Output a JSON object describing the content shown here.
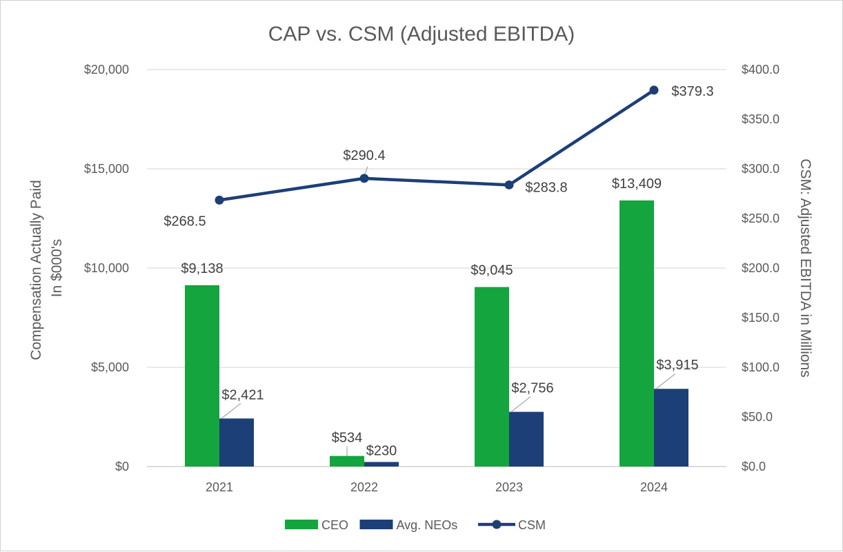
{
  "chart_data": {
    "type": "bar",
    "title": "CAP vs. CSM (Adjusted EBITDA)",
    "categories": [
      "2021",
      "2022",
      "2023",
      "2024"
    ],
    "series": [
      {
        "name": "CEO",
        "kind": "bar",
        "axis": "left",
        "color": "#14a53f",
        "values": [
          9138,
          534,
          9045,
          13409
        ],
        "labels": [
          "$9,138",
          "$534",
          "$9,045",
          "$13,409"
        ]
      },
      {
        "name": "Avg. NEOs",
        "kind": "bar",
        "axis": "left",
        "color": "#1c3f77",
        "values": [
          2421,
          230,
          2756,
          3915
        ],
        "labels": [
          "$2,421",
          "$230",
          "$2,756",
          "$3,915"
        ]
      },
      {
        "name": "CSM",
        "kind": "line",
        "axis": "right",
        "color": "#1c3f77",
        "values": [
          268.5,
          290.4,
          283.8,
          379.3
        ],
        "labels": [
          "$268.5",
          "$290.4",
          "$283.8",
          "$379.3"
        ]
      }
    ],
    "ylabel": "Compensation Actually Paid In $000's",
    "ylabel_lines": [
      "Compensation Actually Paid",
      "In $000's"
    ],
    "ylabel_right": "CSM: Adjusted EBITDA in Millions",
    "ylim": [
      0,
      20000
    ],
    "ylim_right": [
      0,
      400
    ],
    "yticks": [
      "$0",
      "$5,000",
      "$10,000",
      "$15,000",
      "$20,000"
    ],
    "yticks_right": [
      "$0.0",
      "$50.0",
      "$100.0",
      "$150.0",
      "$200.0",
      "$250.0",
      "$300.0",
      "$350.0",
      "$400.0"
    ],
    "grid": true,
    "legend_position": "bottom"
  }
}
